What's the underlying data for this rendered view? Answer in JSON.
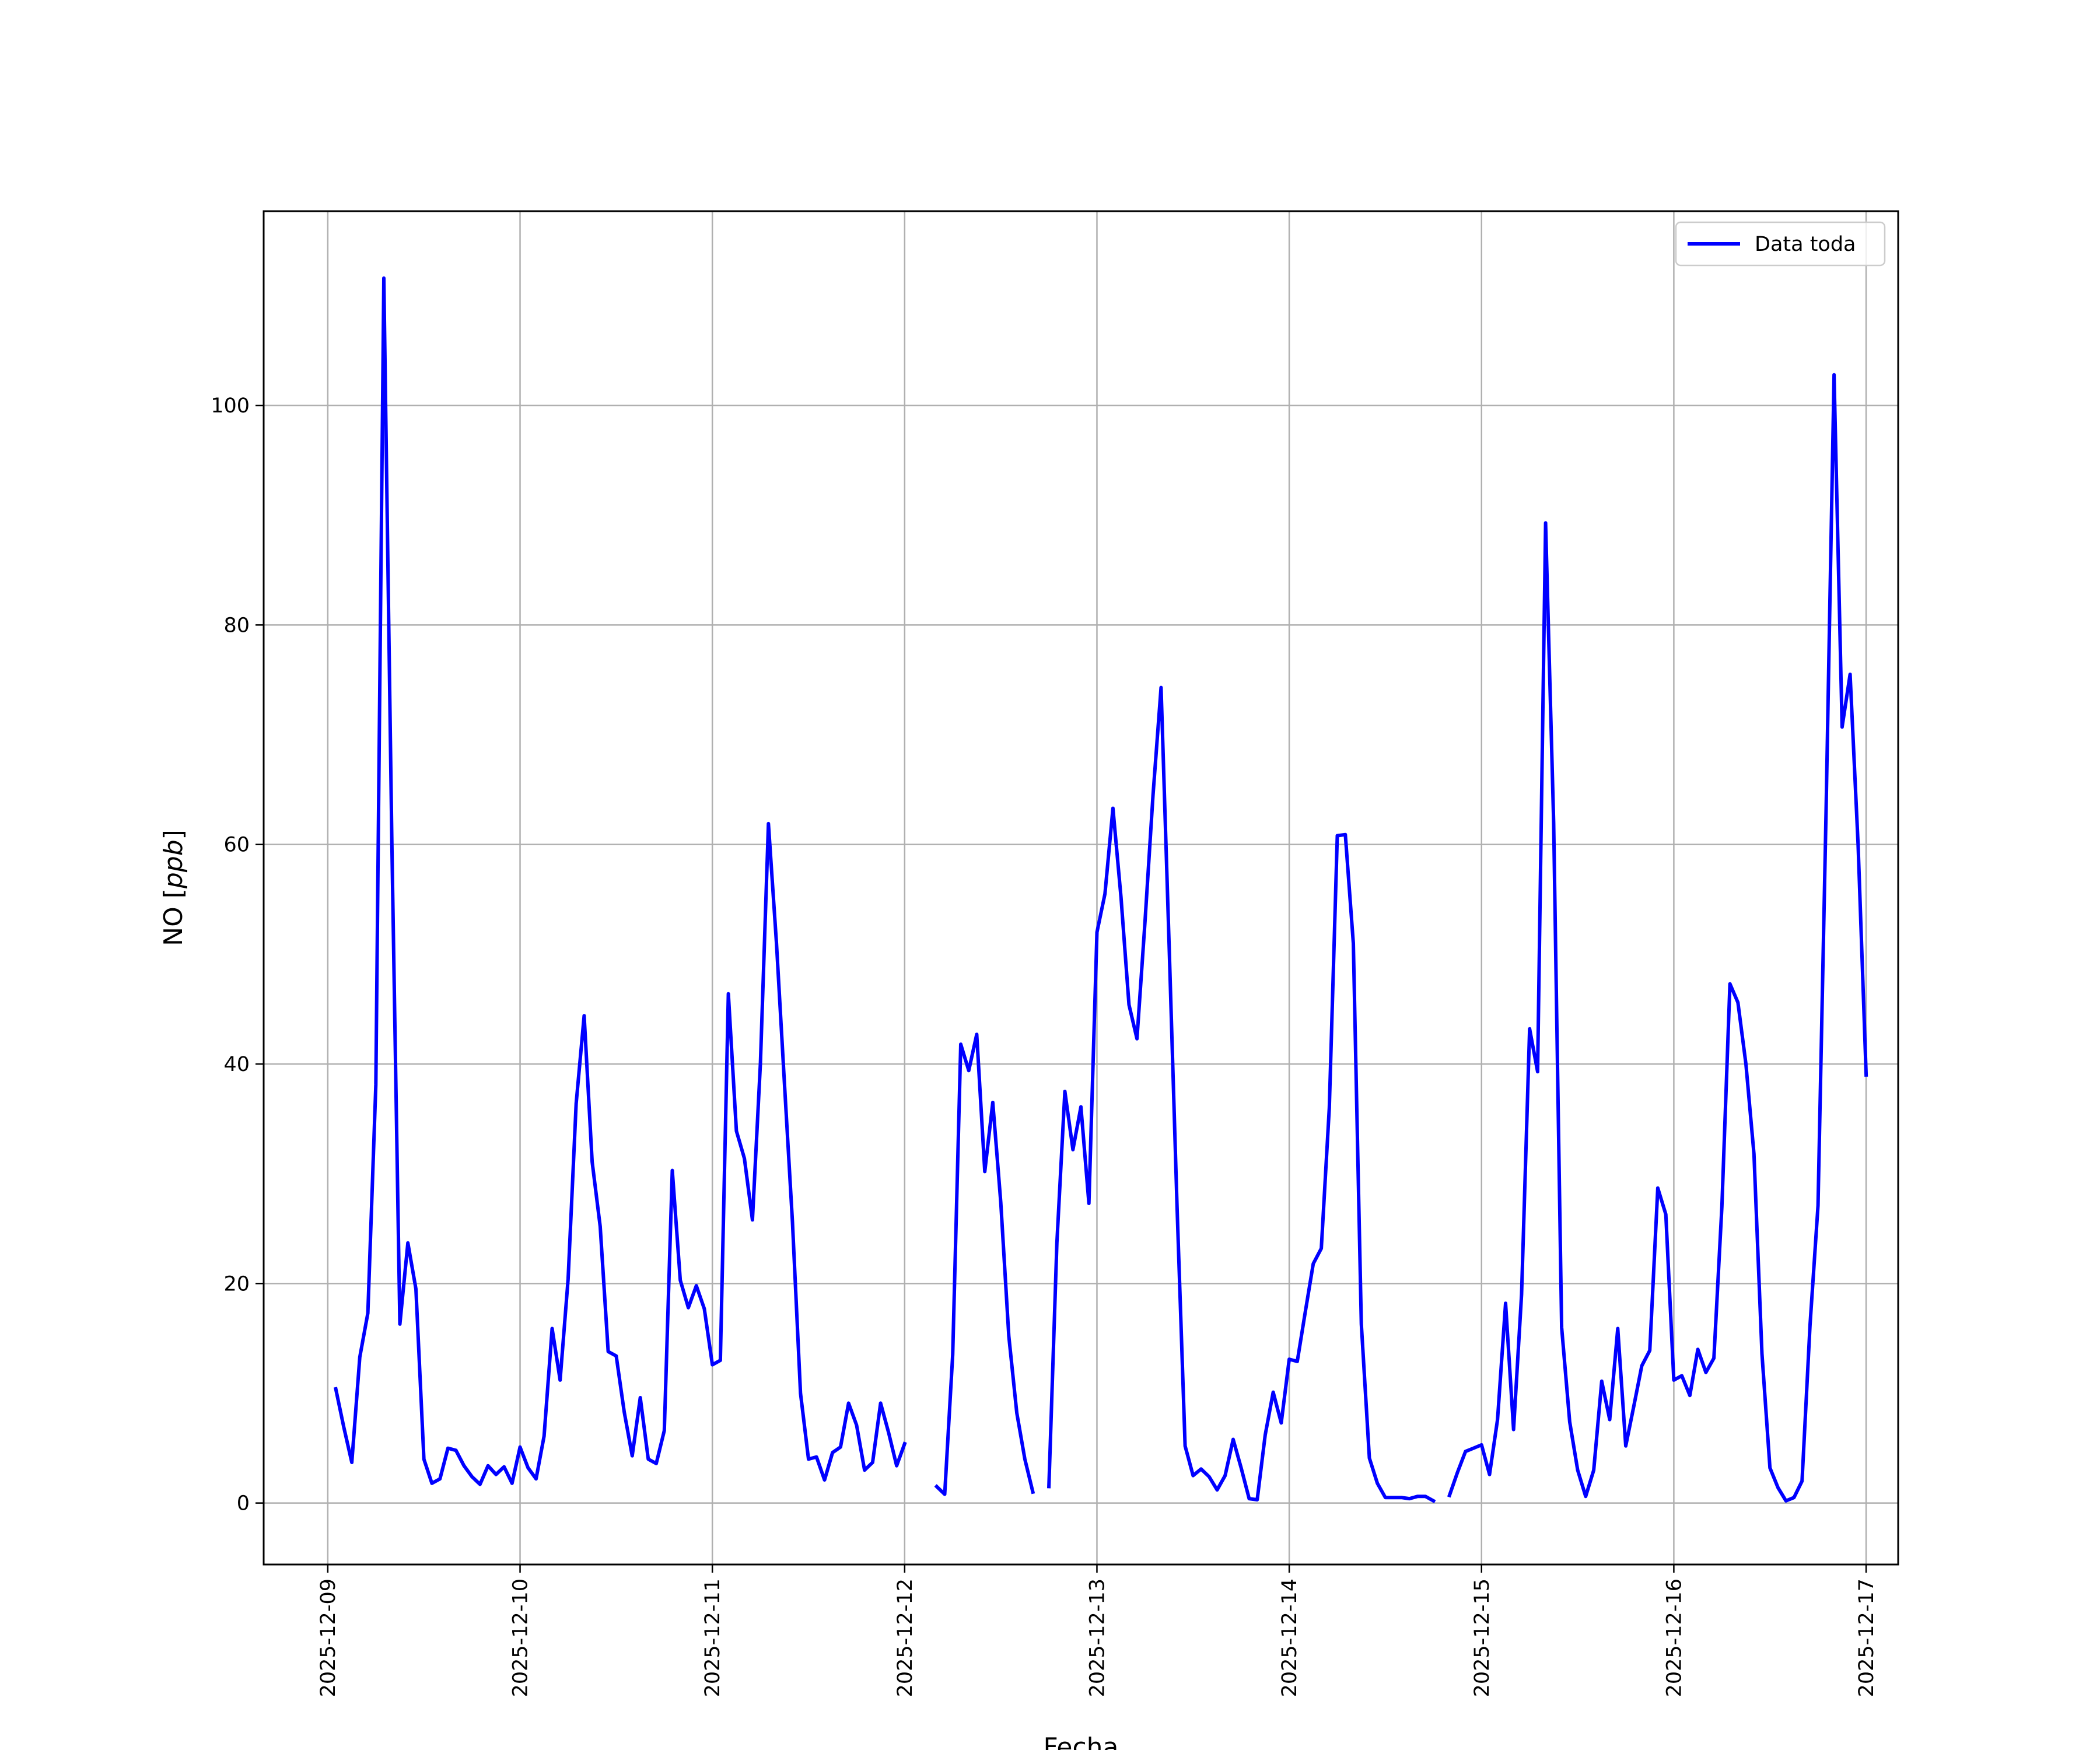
{
  "chart_data": {
    "type": "line",
    "title": "",
    "xlabel": "Fecha",
    "ylabel": "NO [ppb]",
    "ylabel_parts": {
      "prefix": "NO [",
      "italic": "ppb",
      "suffix": "]"
    },
    "xlim": [
      "2025-12-08T16:00",
      "2025-12-17T04:00"
    ],
    "ylim": [
      -5.6,
      117.7
    ],
    "grid": true,
    "legend_position": "top-right",
    "x_ticks": [
      {
        "date": "2025-12-09T00:00",
        "label": "2025-12-09"
      },
      {
        "date": "2025-12-10T00:00",
        "label": "2025-12-10"
      },
      {
        "date": "2025-12-11T00:00",
        "label": "2025-12-11"
      },
      {
        "date": "2025-12-12T00:00",
        "label": "2025-12-12"
      },
      {
        "date": "2025-12-13T00:00",
        "label": "2025-12-13"
      },
      {
        "date": "2025-12-14T00:00",
        "label": "2025-12-14"
      },
      {
        "date": "2025-12-15T00:00",
        "label": "2025-12-15"
      },
      {
        "date": "2025-12-16T00:00",
        "label": "2025-12-16"
      },
      {
        "date": "2025-12-17T00:00",
        "label": "2025-12-17"
      }
    ],
    "y_ticks": [
      {
        "value": 0,
        "label": "0"
      },
      {
        "value": 20,
        "label": "20"
      },
      {
        "value": 40,
        "label": "40"
      },
      {
        "value": 60,
        "label": "60"
      },
      {
        "value": 80,
        "label": "80"
      },
      {
        "value": 100,
        "label": "100"
      }
    ],
    "series": [
      {
        "name": "Data toda",
        "color": "#0000ff",
        "points": [
          [
            "2025-12-09T01:00",
            10.4
          ],
          [
            "2025-12-09T02:00",
            6.9
          ],
          [
            "2025-12-09T03:00",
            3.7
          ],
          [
            "2025-12-09T04:00",
            13.3
          ],
          [
            "2025-12-09T05:00",
            17.3
          ],
          [
            "2025-12-09T06:00",
            38.1
          ],
          [
            "2025-12-09T07:00",
            111.6
          ],
          [
            "2025-12-09T08:00",
            60.0
          ],
          [
            "2025-12-09T09:00",
            16.3
          ],
          [
            "2025-12-09T10:00",
            23.7
          ],
          [
            "2025-12-09T11:00",
            19.5
          ],
          [
            "2025-12-09T12:00",
            4.0
          ],
          [
            "2025-12-09T13:00",
            1.8
          ],
          [
            "2025-12-09T14:00",
            2.2
          ],
          [
            "2025-12-09T15:00",
            5.0
          ],
          [
            "2025-12-09T16:00",
            4.8
          ],
          [
            "2025-12-09T17:00",
            3.4
          ],
          [
            "2025-12-09T18:00",
            2.4
          ],
          [
            "2025-12-09T19:00",
            1.7
          ],
          [
            "2025-12-09T20:00",
            3.4
          ],
          [
            "2025-12-09T21:00",
            2.6
          ],
          [
            "2025-12-09T22:00",
            3.3
          ],
          [
            "2025-12-09T23:00",
            1.8
          ],
          [
            "2025-12-10T00:00",
            5.1
          ],
          [
            "2025-12-10T01:00",
            3.2
          ],
          [
            "2025-12-10T02:00",
            2.2
          ],
          [
            "2025-12-10T03:00",
            6.1
          ],
          [
            "2025-12-10T04:00",
            15.9
          ],
          [
            "2025-12-10T05:00",
            11.2
          ],
          [
            "2025-12-10T06:00",
            20.4
          ],
          [
            "2025-12-10T07:00",
            36.4
          ],
          [
            "2025-12-10T08:00",
            44.4
          ],
          [
            "2025-12-10T09:00",
            31.1
          ],
          [
            "2025-12-10T10:00",
            25.2
          ],
          [
            "2025-12-10T11:00",
            13.8
          ],
          [
            "2025-12-10T12:00",
            13.4
          ],
          [
            "2025-12-10T13:00",
            8.3
          ],
          [
            "2025-12-10T14:00",
            4.3
          ],
          [
            "2025-12-10T15:00",
            9.6
          ],
          [
            "2025-12-10T16:00",
            4.0
          ],
          [
            "2025-12-10T17:00",
            3.6
          ],
          [
            "2025-12-10T18:00",
            6.6
          ],
          [
            "2025-12-10T19:00",
            30.3
          ],
          [
            "2025-12-10T20:00",
            20.3
          ],
          [
            "2025-12-10T21:00",
            17.8
          ],
          [
            "2025-12-10T22:00",
            19.8
          ],
          [
            "2025-12-10T23:00",
            17.7
          ],
          [
            "2025-12-11T00:00",
            12.6
          ],
          [
            "2025-12-11T01:00",
            13.0
          ],
          [
            "2025-12-11T02:00",
            46.4
          ],
          [
            "2025-12-11T03:00",
            33.9
          ],
          [
            "2025-12-11T04:00",
            31.4
          ],
          [
            "2025-12-11T05:00",
            25.8
          ],
          [
            "2025-12-11T06:00",
            40.1
          ],
          [
            "2025-12-11T07:00",
            61.9
          ],
          [
            "2025-12-11T08:00",
            51.0
          ],
          [
            "2025-12-11T09:00",
            38.2
          ],
          [
            "2025-12-11T10:00",
            25.6
          ],
          [
            "2025-12-11T11:00",
            10.0
          ],
          [
            "2025-12-11T12:00",
            4.0
          ],
          [
            "2025-12-11T13:00",
            4.2
          ],
          [
            "2025-12-11T14:00",
            2.1
          ],
          [
            "2025-12-11T15:00",
            4.6
          ],
          [
            "2025-12-11T16:00",
            5.1
          ],
          [
            "2025-12-11T17:00",
            9.1
          ],
          [
            "2025-12-11T18:00",
            7.1
          ],
          [
            "2025-12-11T19:00",
            3.0
          ],
          [
            "2025-12-11T20:00",
            3.7
          ],
          [
            "2025-12-11T21:00",
            9.1
          ],
          [
            "2025-12-11T22:00",
            6.4
          ],
          [
            "2025-12-11T23:00",
            3.4
          ],
          [
            "2025-12-12T00:00",
            5.4
          ],
          null,
          [
            "2025-12-12T04:00",
            1.5
          ],
          [
            "2025-12-12T05:00",
            0.8
          ],
          [
            "2025-12-12T06:00",
            13.5
          ],
          [
            "2025-12-12T07:00",
            41.8
          ],
          [
            "2025-12-12T08:00",
            39.4
          ],
          [
            "2025-12-12T09:00",
            42.7
          ],
          [
            "2025-12-12T10:00",
            30.2
          ],
          [
            "2025-12-12T11:00",
            36.5
          ],
          [
            "2025-12-12T12:00",
            27.4
          ],
          [
            "2025-12-12T13:00",
            15.2
          ],
          [
            "2025-12-12T14:00",
            8.2
          ],
          [
            "2025-12-12T15:00",
            4.0
          ],
          [
            "2025-12-12T16:00",
            1.0
          ],
          null,
          [
            "2025-12-12T18:00",
            1.5
          ],
          [
            "2025-12-12T19:00",
            23.7
          ],
          [
            "2025-12-12T20:00",
            37.5
          ],
          [
            "2025-12-12T21:00",
            32.2
          ],
          [
            "2025-12-12T22:00",
            36.1
          ],
          [
            "2025-12-12T23:00",
            27.3
          ],
          [
            "2025-12-13T00:00",
            52.0
          ],
          [
            "2025-12-13T01:00",
            55.5
          ],
          [
            "2025-12-13T02:00",
            63.3
          ],
          [
            "2025-12-13T03:00",
            55.2
          ],
          [
            "2025-12-13T04:00",
            45.4
          ],
          [
            "2025-12-13T05:00",
            42.3
          ],
          [
            "2025-12-13T06:00",
            53.0
          ],
          [
            "2025-12-13T07:00",
            64.5
          ],
          [
            "2025-12-13T08:00",
            74.3
          ],
          [
            "2025-12-13T09:00",
            51.0
          ],
          [
            "2025-12-13T10:00",
            27.0
          ],
          [
            "2025-12-13T11:00",
            5.2
          ],
          [
            "2025-12-13T12:00",
            2.5
          ],
          [
            "2025-12-13T13:00",
            3.1
          ],
          [
            "2025-12-13T14:00",
            2.4
          ],
          [
            "2025-12-13T15:00",
            1.2
          ],
          [
            "2025-12-13T16:00",
            2.5
          ],
          [
            "2025-12-13T17:00",
            5.8
          ],
          [
            "2025-12-13T18:00",
            3.2
          ],
          [
            "2025-12-13T19:00",
            0.4
          ],
          [
            "2025-12-13T20:00",
            0.3
          ],
          [
            "2025-12-13T21:00",
            6.2
          ],
          [
            "2025-12-13T22:00",
            10.1
          ],
          [
            "2025-12-13T23:00",
            7.3
          ],
          [
            "2025-12-14T00:00",
            13.1
          ],
          [
            "2025-12-14T01:00",
            12.9
          ],
          [
            "2025-12-14T02:00",
            17.4
          ],
          [
            "2025-12-14T03:00",
            21.8
          ],
          [
            "2025-12-14T04:00",
            23.2
          ],
          [
            "2025-12-14T05:00",
            36.0
          ],
          [
            "2025-12-14T06:00",
            60.8
          ],
          [
            "2025-12-14T07:00",
            60.9
          ],
          [
            "2025-12-14T08:00",
            51.0
          ],
          [
            "2025-12-14T09:00",
            16.3
          ],
          [
            "2025-12-14T10:00",
            4.1
          ],
          [
            "2025-12-14T11:00",
            1.8
          ],
          [
            "2025-12-14T12:00",
            0.5
          ],
          [
            "2025-12-14T13:00",
            0.5
          ],
          [
            "2025-12-14T14:00",
            0.5
          ],
          [
            "2025-12-14T15:00",
            0.4
          ],
          [
            "2025-12-14T16:00",
            0.6
          ],
          [
            "2025-12-14T17:00",
            0.6
          ],
          [
            "2025-12-14T18:00",
            0.2
          ],
          null,
          [
            "2025-12-14T20:00",
            0.7
          ],
          [
            "2025-12-14T21:00",
            2.8
          ],
          [
            "2025-12-14T22:00",
            4.7
          ],
          [
            "2025-12-14T23:00",
            5.0
          ],
          [
            "2025-12-15T00:00",
            5.3
          ],
          [
            "2025-12-15T01:00",
            2.6
          ],
          [
            "2025-12-15T02:00",
            7.6
          ],
          [
            "2025-12-15T03:00",
            18.2
          ],
          [
            "2025-12-15T04:00",
            6.7
          ],
          [
            "2025-12-15T05:00",
            19.0
          ],
          [
            "2025-12-15T06:00",
            43.2
          ],
          [
            "2025-12-15T07:00",
            39.3
          ],
          [
            "2025-12-15T08:00",
            89.3
          ],
          [
            "2025-12-15T09:00",
            62.0
          ],
          [
            "2025-12-15T10:00",
            16.0
          ],
          [
            "2025-12-15T11:00",
            7.4
          ],
          [
            "2025-12-15T12:00",
            3.0
          ],
          [
            "2025-12-15T13:00",
            0.6
          ],
          [
            "2025-12-15T14:00",
            3.0
          ],
          [
            "2025-12-15T15:00",
            11.1
          ],
          [
            "2025-12-15T16:00",
            7.6
          ],
          [
            "2025-12-15T17:00",
            15.9
          ],
          [
            "2025-12-15T18:00",
            5.2
          ],
          [
            "2025-12-15T19:00",
            8.8
          ],
          [
            "2025-12-15T20:00",
            12.5
          ],
          [
            "2025-12-15T21:00",
            13.9
          ],
          [
            "2025-12-15T22:00",
            28.7
          ],
          [
            "2025-12-15T23:00",
            26.3
          ],
          [
            "2025-12-16T00:00",
            11.2
          ],
          [
            "2025-12-16T01:00",
            11.6
          ],
          [
            "2025-12-16T02:00",
            9.8
          ],
          [
            "2025-12-16T03:00",
            14.0
          ],
          [
            "2025-12-16T04:00",
            11.9
          ],
          [
            "2025-12-16T05:00",
            13.2
          ],
          [
            "2025-12-16T06:00",
            27.0
          ],
          [
            "2025-12-16T07:00",
            47.3
          ],
          [
            "2025-12-16T08:00",
            45.6
          ],
          [
            "2025-12-16T09:00",
            40.0
          ],
          [
            "2025-12-16T10:00",
            31.8
          ],
          [
            "2025-12-16T11:00",
            13.6
          ],
          [
            "2025-12-16T12:00",
            3.2
          ],
          [
            "2025-12-16T13:00",
            1.4
          ],
          [
            "2025-12-16T14:00",
            0.2
          ],
          [
            "2025-12-16T15:00",
            0.5
          ],
          [
            "2025-12-16T16:00",
            2.0
          ],
          [
            "2025-12-16T17:00",
            16.2
          ],
          [
            "2025-12-16T18:00",
            27.1
          ],
          [
            "2025-12-16T19:00",
            63.0
          ],
          [
            "2025-12-16T20:00",
            102.8
          ],
          [
            "2025-12-16T21:00",
            70.7
          ],
          [
            "2025-12-16T22:00",
            75.5
          ],
          [
            "2025-12-16T23:00",
            60.0
          ],
          [
            "2025-12-17T00:00",
            39.0
          ]
        ]
      }
    ]
  }
}
